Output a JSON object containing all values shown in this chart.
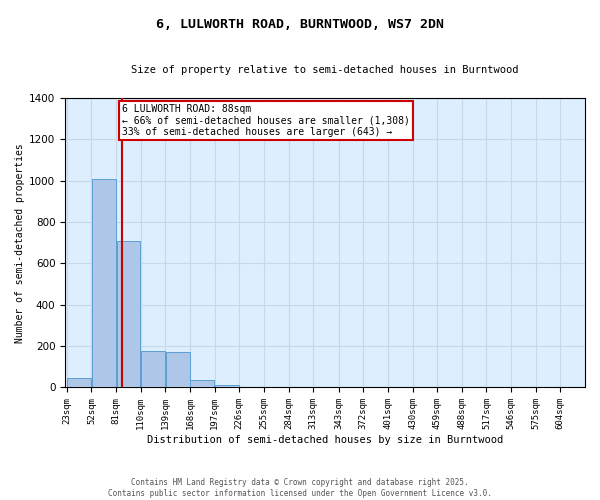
{
  "title": "6, LULWORTH ROAD, BURNTWOOD, WS7 2DN",
  "subtitle": "Size of property relative to semi-detached houses in Burntwood",
  "xlabel": "Distribution of semi-detached houses by size in Burntwood",
  "ylabel": "Number of semi-detached properties",
  "footer_line1": "Contains HM Land Registry data © Crown copyright and database right 2025.",
  "footer_line2": "Contains public sector information licensed under the Open Government Licence v3.0.",
  "annotation_line1": "6 LULWORTH ROAD: 88sqm",
  "annotation_line2": "← 66% of semi-detached houses are smaller (1,308)",
  "annotation_line3": "33% of semi-detached houses are larger (643) →",
  "property_size": 88,
  "bins": [
    23,
    52,
    81,
    110,
    139,
    168,
    197,
    226,
    255,
    284,
    313,
    343,
    372,
    401,
    430,
    459,
    488,
    517,
    546,
    575,
    604
  ],
  "counts": [
    45,
    1010,
    710,
    175,
    170,
    35,
    12,
    0,
    0,
    0,
    0,
    0,
    0,
    0,
    0,
    0,
    0,
    0,
    0,
    0
  ],
  "bar_color": "#aec6e8",
  "bar_edge_color": "#5a9fd4",
  "red_line_color": "#cc0000",
  "annotation_box_color": "#cc0000",
  "grid_color": "#c8d8e8",
  "background_color": "#ddeeff",
  "ylim": [
    0,
    1400
  ],
  "yticks": [
    0,
    200,
    400,
    600,
    800,
    1000,
    1200,
    1400
  ]
}
